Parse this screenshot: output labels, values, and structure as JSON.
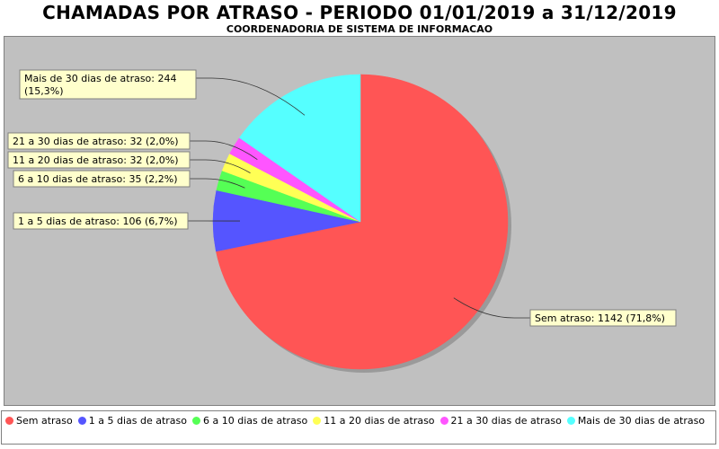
{
  "chart_data": {
    "type": "pie",
    "title": "CHAMADAS POR ATRASO - PERIODO 01/01/2019 a 31/12/2019",
    "subtitle": "COORDENADORIA DE SISTEMA DE INFORMACAO",
    "legend_position": "bottom",
    "slices": [
      {
        "label": "Sem atraso",
        "value": 1142,
        "percent": "71,8%",
        "color": "#ff5555",
        "callout": "Sem atraso: 1142 (71,8%)"
      },
      {
        "label": "1 a 5 dias de atraso",
        "value": 106,
        "percent": "6,7%",
        "color": "#5555ff",
        "callout": "1 a 5 dias de atraso: 106 (6,7%)"
      },
      {
        "label": "6 a 10 dias de atraso",
        "value": 35,
        "percent": "2,2%",
        "color": "#55ff55",
        "callout": "6 a 10 dias de atraso: 35 (2,2%)"
      },
      {
        "label": "11 a 20 dias de atraso",
        "value": 32,
        "percent": "2,0%",
        "color": "#ffff55",
        "callout": "11 a 20 dias de atraso: 32 (2,0%)"
      },
      {
        "label": "21 a 30 dias de atraso",
        "value": 32,
        "percent": "2,0%",
        "color": "#ff55ff",
        "callout": "21 a 30 dias de atraso: 32 (2,0%)"
      },
      {
        "label": "Mais de 30 dias de atraso",
        "value": 244,
        "percent": "15,3%",
        "color": "#55ffff",
        "callout_lines": [
          "Mais de 30 dias de atraso: 244",
          "(15,3%)"
        ]
      }
    ]
  }
}
